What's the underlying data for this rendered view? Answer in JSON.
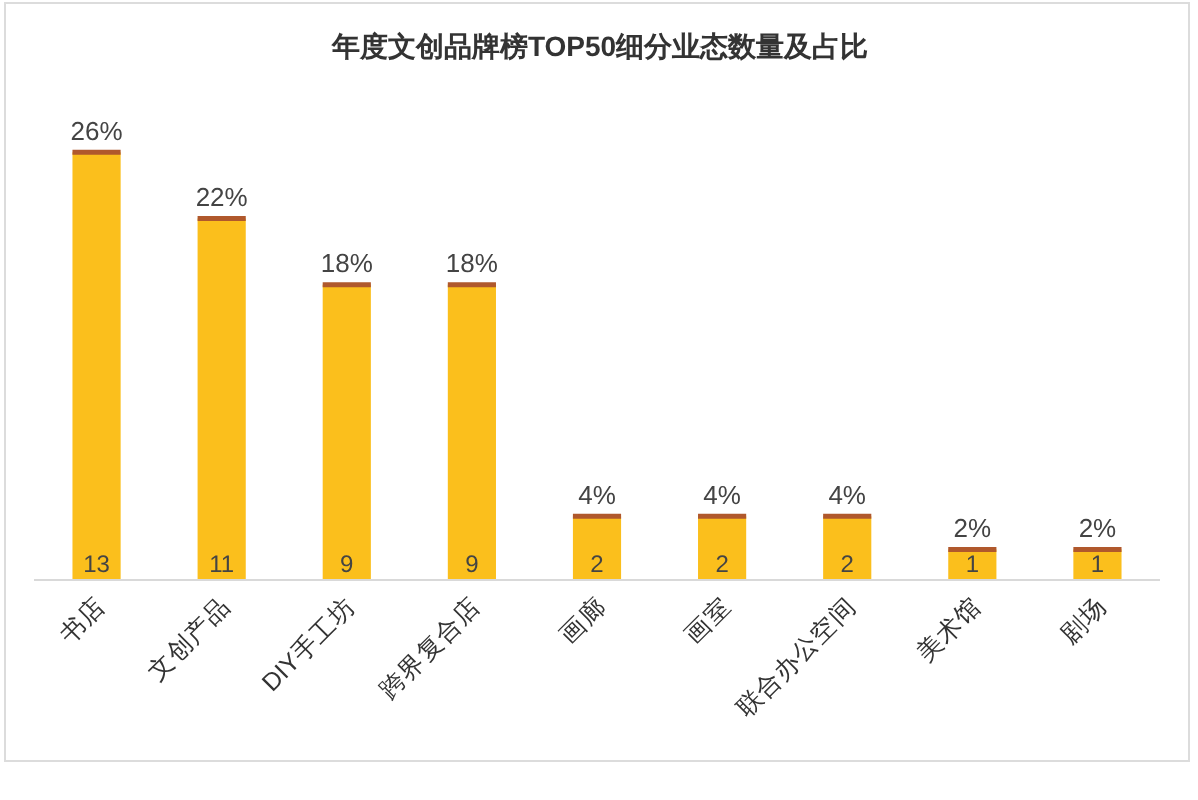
{
  "chart_data": {
    "type": "bar",
    "title": "年度文创品牌榜TOP50细分业态数量及占比",
    "categories": [
      "书店",
      "文创产品",
      "DIY手工坊",
      "跨界复合店",
      "画廊",
      "画室",
      "联合办公空间",
      "美术馆",
      "剧场"
    ],
    "values": [
      26,
      22,
      18,
      18,
      4,
      4,
      4,
      2,
      2
    ],
    "value_labels": [
      "26%",
      "22%",
      "18%",
      "18%",
      "4%",
      "4%",
      "4%",
      "2%",
      "2%"
    ],
    "color": "#fbbf1c",
    "annotations": [
      {
        "text": "13",
        "x": "书店",
        "y": 0
      },
      {
        "text": "11",
        "x": "文创产品",
        "y": 0
      },
      {
        "text": "9",
        "x": "DIY手工坊",
        "y": 0
      },
      {
        "text": "9",
        "x": "跨界复合店",
        "y": 0
      },
      {
        "text": "2",
        "x": "画廊",
        "y": 0
      },
      {
        "text": "2",
        "x": "画室",
        "y": 0
      },
      {
        "text": "2",
        "x": "联合办公空间",
        "y": 0
      },
      {
        "text": "1",
        "x": "美术馆",
        "y": 0
      },
      {
        "text": "1",
        "x": "剧场",
        "y": 0
      }
    ]
  }
}
